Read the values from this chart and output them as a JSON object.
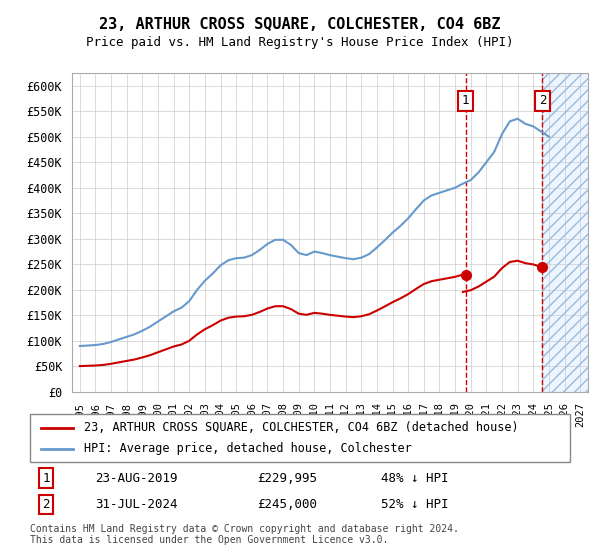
{
  "title": "23, ARTHUR CROSS SQUARE, COLCHESTER, CO4 6BZ",
  "subtitle": "Price paid vs. HM Land Registry's House Price Index (HPI)",
  "footnote": "Contains HM Land Registry data © Crown copyright and database right 2024.\nThis data is licensed under the Open Government Licence v3.0.",
  "legend_line1": "23, ARTHUR CROSS SQUARE, COLCHESTER, CO4 6BZ (detached house)",
  "legend_line2": "HPI: Average price, detached house, Colchester",
  "annotation1_label": "1",
  "annotation1_date": "23-AUG-2019",
  "annotation1_price": "£229,995",
  "annotation1_pct": "48% ↓ HPI",
  "annotation2_label": "2",
  "annotation2_date": "31-JUL-2024",
  "annotation2_price": "£245,000",
  "annotation2_pct": "52% ↓ HPI",
  "red_color": "#cc0000",
  "blue_color": "#6699cc",
  "hatch_color": "#aaccee",
  "ylim": [
    0,
    625000
  ],
  "yticks": [
    0,
    50000,
    100000,
    150000,
    200000,
    250000,
    300000,
    350000,
    400000,
    450000,
    500000,
    550000,
    600000
  ],
  "ylabel_format": "£{0}K",
  "xstart_year": 1995,
  "xend_year": 2027
}
